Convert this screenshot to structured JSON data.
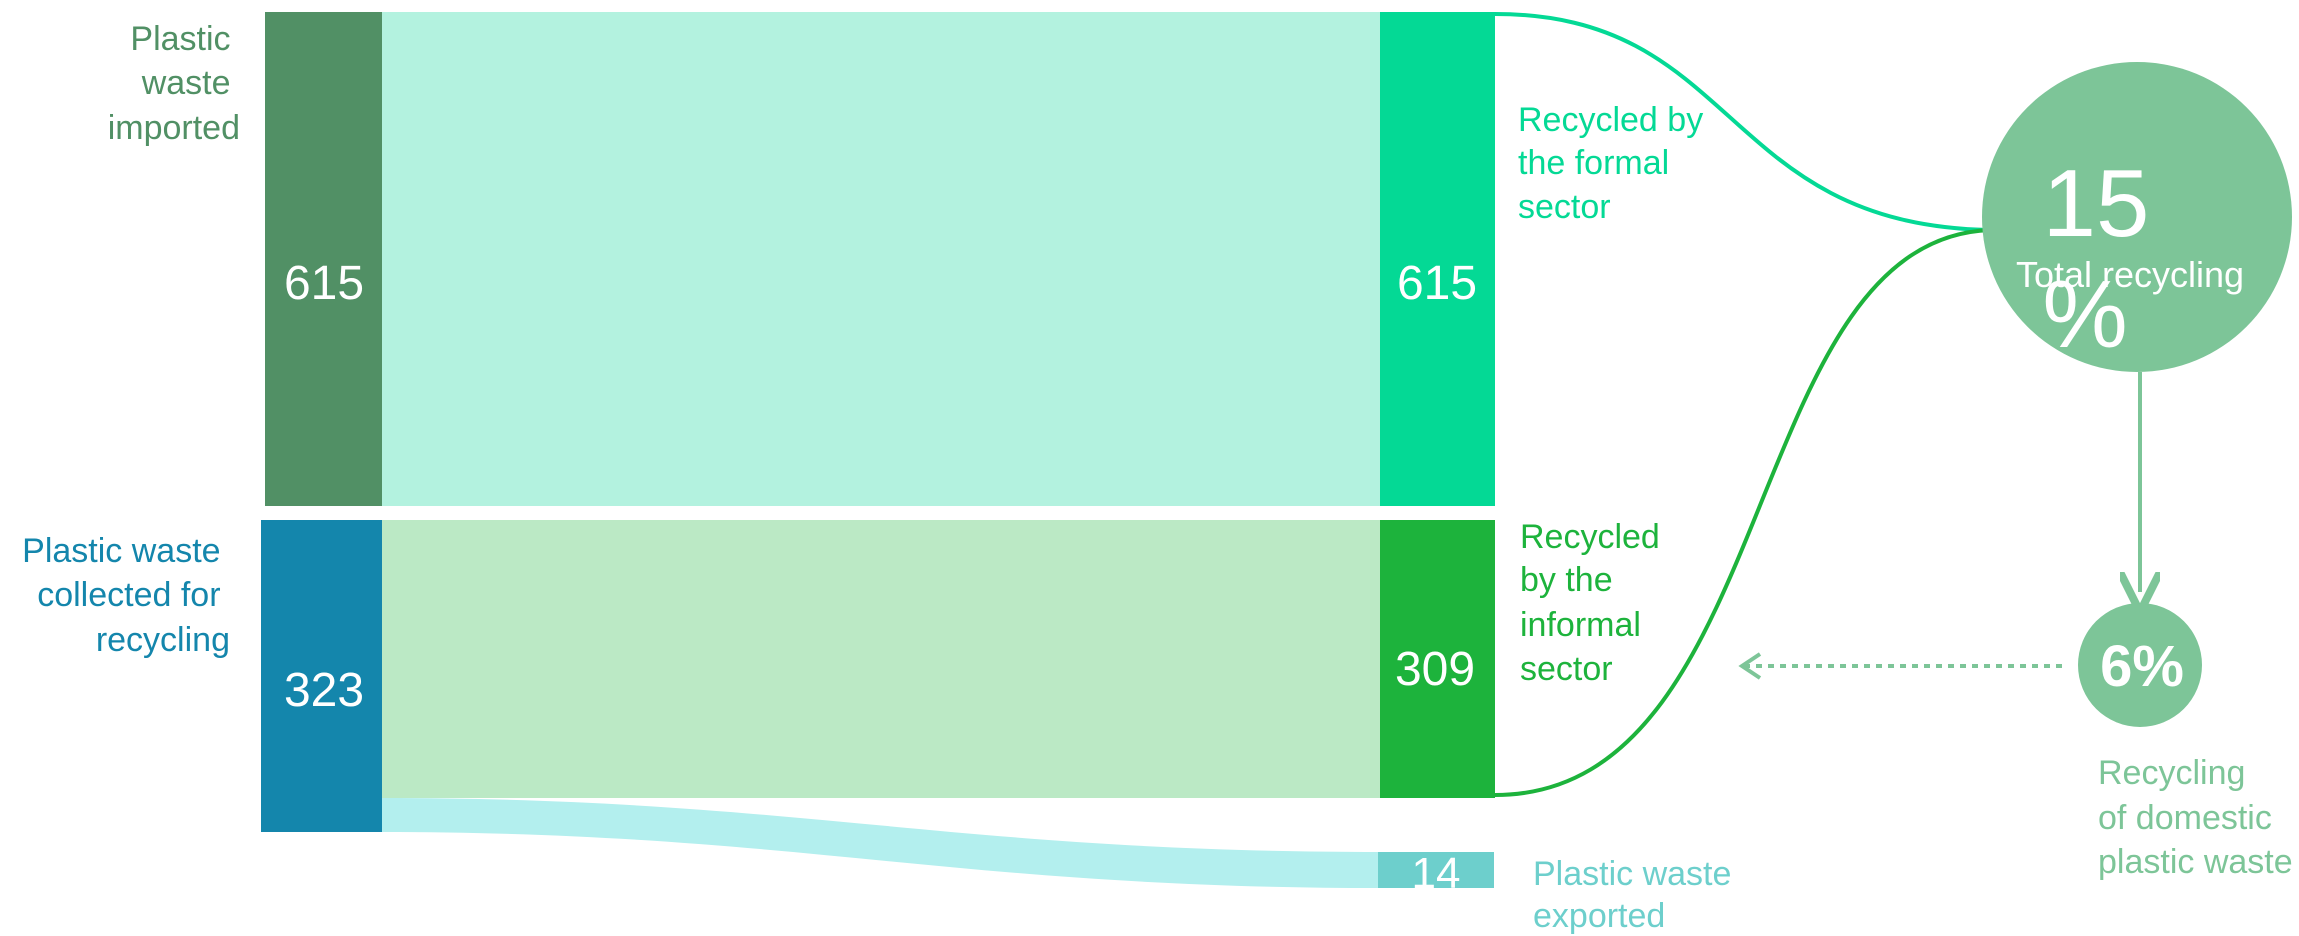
{
  "nodes": {
    "imported": {
      "label_lines": [
        "Plastic",
        "waste",
        "imported"
      ],
      "value": "615",
      "color": "#519065"
    },
    "collected": {
      "label_lines": [
        "Plastic waste",
        "collected for",
        "recycling"
      ],
      "value": "323",
      "color": "#1486ac"
    },
    "formal": {
      "label_lines": [
        "Recycled by",
        "the formal",
        "sector"
      ],
      "value": "615",
      "color": "#04d995"
    },
    "informal": {
      "label_lines": [
        "Recycled",
        "by the",
        "informal",
        "sector"
      ],
      "value": "309",
      "color": "#1db33c"
    },
    "exported": {
      "label_lines": [
        "Plastic waste",
        "exported"
      ],
      "value": "14",
      "color": "#6dcfcc"
    }
  },
  "flows": {
    "imported_to_formal": {
      "color": "#b3f2df"
    },
    "collected_to_informal": {
      "color": "#bbe9c5"
    },
    "collected_to_exported": {
      "color": "#b3efee"
    }
  },
  "total": {
    "value_lines": [
      "15",
      "%"
    ],
    "label": "Total recycling",
    "color": "#7dc598"
  },
  "domestic": {
    "value": "6%",
    "label_lines": [
      "Recycling",
      "of domestic",
      "plastic waste"
    ],
    "color": "#7dc598"
  }
}
